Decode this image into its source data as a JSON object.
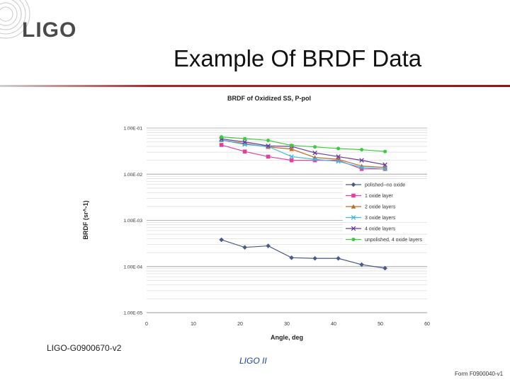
{
  "logo": {
    "text": "LIGO"
  },
  "slide": {
    "title": "Example Of BRDF Data"
  },
  "footer": {
    "doc_id": "LIGO-G0900670-v2",
    "center": "LIGO II",
    "form": "Form F0900040-v1"
  },
  "colors": {
    "title_rule": "#8a1a1a",
    "footer_center": "#1c3fa8"
  },
  "chart_data": {
    "type": "line",
    "title": "BRDF of Oxidized SS, P-pol",
    "xlabel": "Angle, deg",
    "ylabel": "BRDF (sr^-1)",
    "xlim": [
      0,
      60
    ],
    "ylim": [
      1e-05,
      0.1
    ],
    "yscale": "log",
    "x_ticks": [
      "0",
      "10",
      "20",
      "30",
      "40",
      "50",
      "60"
    ],
    "y_ticks": [
      "1.00E-01",
      "1.00E-02",
      "1.00E-03",
      "1.00E-04",
      "1.00E-05"
    ],
    "grid": true,
    "legend_position": "right",
    "x": [
      16,
      21,
      26,
      31,
      36,
      41,
      46,
      51
    ],
    "series": [
      {
        "name": "polished--no oxide",
        "color": "#4a5a8a",
        "marker": "diamond",
        "values": [
          0.00038,
          0.00026,
          0.00028,
          0.000155,
          0.00015,
          0.00015,
          0.00011,
          9.2e-05
        ]
      },
      {
        "name": "1 oxide layer",
        "color": "#e040a0",
        "marker": "square",
        "values": [
          0.043,
          0.031,
          0.024,
          0.02,
          0.02,
          0.02,
          0.013,
          0.013
        ]
      },
      {
        "name": "2 oxide layers",
        "color": "#c06a2a",
        "marker": "triangle",
        "values": [
          0.055,
          0.046,
          0.039,
          0.035,
          0.023,
          0.021,
          0.015,
          0.014
        ]
      },
      {
        "name": "3 oxide layers",
        "color": "#40b8e0",
        "marker": "x",
        "values": [
          0.055,
          0.044,
          0.04,
          0.024,
          0.021,
          0.019,
          0.014,
          0.013
        ]
      },
      {
        "name": "4 oxide layers",
        "color": "#6a3a9a",
        "marker": "x",
        "values": [
          0.058,
          0.05,
          0.041,
          0.04,
          0.029,
          0.024,
          0.02,
          0.016
        ]
      },
      {
        "name": "unpolished, 4 oxide layers",
        "color": "#3acc3a",
        "marker": "circle",
        "values": [
          0.064,
          0.059,
          0.054,
          0.042,
          0.039,
          0.036,
          0.034,
          0.031
        ]
      }
    ]
  }
}
